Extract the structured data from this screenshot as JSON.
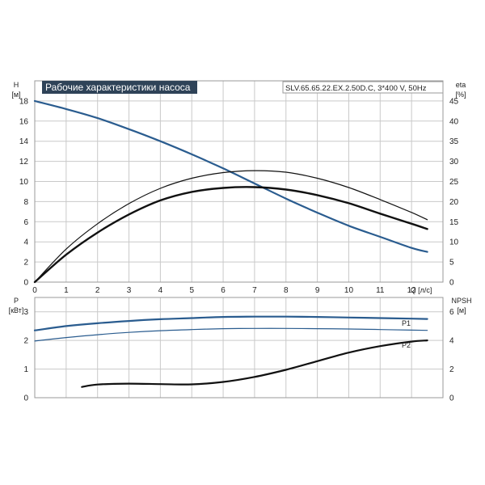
{
  "header": {
    "title": "Рабочие характеристики насоса",
    "model": "SLV.65.65.22.EX.2.50D.C, 3*400 V, 50Hz"
  },
  "chart_data": [
    {
      "type": "line",
      "panel": "top",
      "x_unit": "Q [л/с]",
      "xlim": [
        0,
        13
      ],
      "x_ticks": [
        "0",
        "1",
        "2",
        "3",
        "4",
        "5",
        "6",
        "7",
        "8",
        "9",
        "10",
        "11",
        "12"
      ],
      "left_axis": {
        "label": "H",
        "unit": "[м]",
        "ylim": [
          0,
          20
        ],
        "ticks": [
          "0",
          "2",
          "4",
          "6",
          "8",
          "10",
          "12",
          "14",
          "16",
          "18"
        ]
      },
      "right_axis": {
        "label": "eta",
        "unit": "[%]",
        "ylim": [
          0,
          50
        ],
        "ticks": [
          "0",
          "5",
          "10",
          "15",
          "20",
          "25",
          "30",
          "35",
          "40",
          "45"
        ]
      },
      "grid": true,
      "series": [
        {
          "axis": "left",
          "color": "#2a5c8f",
          "width": 2.2,
          "x": [
            0,
            1,
            2,
            3,
            4,
            5,
            6,
            7,
            8,
            9,
            10,
            11,
            12,
            12.5
          ],
          "y": [
            18.0,
            17.2,
            16.3,
            15.2,
            14.0,
            12.7,
            11.3,
            9.8,
            8.3,
            6.9,
            5.6,
            4.5,
            3.4,
            3.0
          ]
        },
        {
          "axis": "right",
          "color": "#111111",
          "width": 1.2,
          "x": [
            0,
            1,
            2,
            3,
            4,
            5,
            6,
            7,
            8,
            9,
            10,
            11,
            12,
            12.5
          ],
          "y": [
            0,
            8.2,
            14.5,
            19.5,
            23.3,
            25.8,
            27.2,
            27.7,
            27.3,
            25.8,
            23.5,
            20.5,
            17.3,
            15.5
          ]
        },
        {
          "axis": "right",
          "color": "#111111",
          "width": 2.4,
          "x": [
            0,
            1,
            2,
            3,
            4,
            5,
            6,
            7,
            8,
            9,
            10,
            11,
            12,
            12.5
          ],
          "y": [
            0,
            6.8,
            12.3,
            16.8,
            20.3,
            22.4,
            23.4,
            23.6,
            23.0,
            21.6,
            19.6,
            17.0,
            14.5,
            13.2
          ]
        }
      ]
    },
    {
      "type": "line",
      "panel": "bottom",
      "xlim": [
        0,
        13
      ],
      "left_axis": {
        "label": "P",
        "unit": "[кВт]",
        "ylim": [
          0,
          3.5
        ],
        "ticks": [
          "0",
          "1",
          "2",
          "3"
        ]
      },
      "right_axis": {
        "label": "NPSH",
        "unit": "[м]",
        "ylim": [
          0,
          7
        ],
        "ticks": [
          "0",
          "2",
          "4",
          "6"
        ]
      },
      "grid": true,
      "series": [
        {
          "name": "P1",
          "axis": "left",
          "color": "#2a5c8f",
          "width": 2.2,
          "x": [
            0,
            1,
            2,
            3,
            4,
            5,
            6,
            7,
            8,
            9,
            10,
            11,
            12,
            12.5
          ],
          "y": [
            2.35,
            2.5,
            2.6,
            2.68,
            2.74,
            2.78,
            2.82,
            2.83,
            2.83,
            2.82,
            2.8,
            2.78,
            2.76,
            2.75
          ]
        },
        {
          "name": "P2",
          "axis": "left",
          "color": "#2a5c8f",
          "width": 1.2,
          "x": [
            0,
            1,
            2,
            3,
            4,
            5,
            6,
            7,
            8,
            9,
            10,
            11,
            12,
            12.5
          ],
          "y": [
            1.98,
            2.1,
            2.2,
            2.28,
            2.34,
            2.38,
            2.41,
            2.42,
            2.42,
            2.41,
            2.4,
            2.38,
            2.36,
            2.35
          ]
        },
        {
          "name": "",
          "axis": "right",
          "color": "#111111",
          "width": 2.2,
          "x": [
            1.5,
            2,
            3,
            4,
            5,
            6,
            7,
            8,
            9,
            10,
            11,
            12,
            12.5
          ],
          "y": [
            0.75,
            0.92,
            0.98,
            0.95,
            0.93,
            1.1,
            1.45,
            1.95,
            2.55,
            3.15,
            3.6,
            3.92,
            4.0
          ]
        }
      ]
    }
  ]
}
